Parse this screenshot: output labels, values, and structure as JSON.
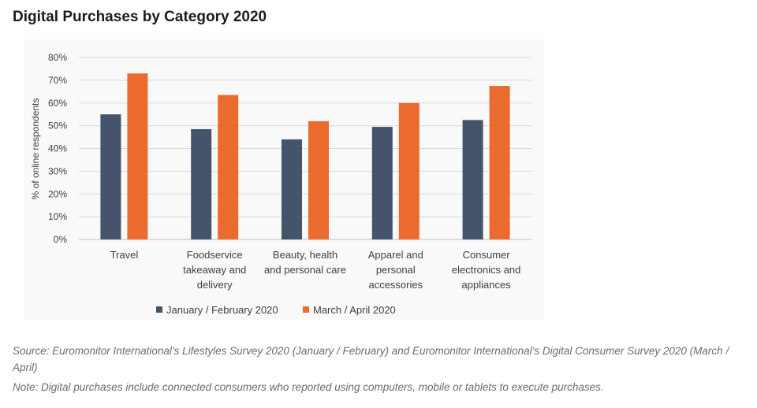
{
  "title": "Digital Purchases by Category 2020",
  "chart_data": {
    "type": "bar",
    "ylabel": "% of online respondents",
    "xlabel": "",
    "ylim": [
      0,
      80
    ],
    "yticks": [
      0,
      10,
      20,
      30,
      40,
      50,
      60,
      70,
      80
    ],
    "ytick_labels": [
      "0%",
      "10%",
      "20%",
      "30%",
      "40%",
      "50%",
      "60%",
      "70%",
      "80%"
    ],
    "grid": true,
    "legend_position": "bottom",
    "categories": [
      [
        "Travel"
      ],
      [
        "Foodservice",
        "takeaway and",
        "delivery"
      ],
      [
        "Beauty, health",
        "and personal care"
      ],
      [
        "Apparel and",
        "personal",
        "accessories"
      ],
      [
        "Consumer",
        "electronics and",
        "appliances"
      ]
    ],
    "series": [
      {
        "name": "January / February 2020",
        "color": "#44546a",
        "values": [
          55,
          48.5,
          44,
          49.5,
          52.5
        ]
      },
      {
        "name": "March / April 2020",
        "color": "#ea6b2d",
        "values": [
          73,
          63.5,
          52,
          60,
          67.5
        ]
      }
    ]
  },
  "source_text": "Source: Euromonitor International’s Lifestyles Survey 2020 (January / February) and Euromonitor International’s Digital Consumer Survey 2020 (March / April)",
  "note_text": "Note: Digital purchases include connected consumers who reported using computers, mobile or tablets to execute purchases."
}
